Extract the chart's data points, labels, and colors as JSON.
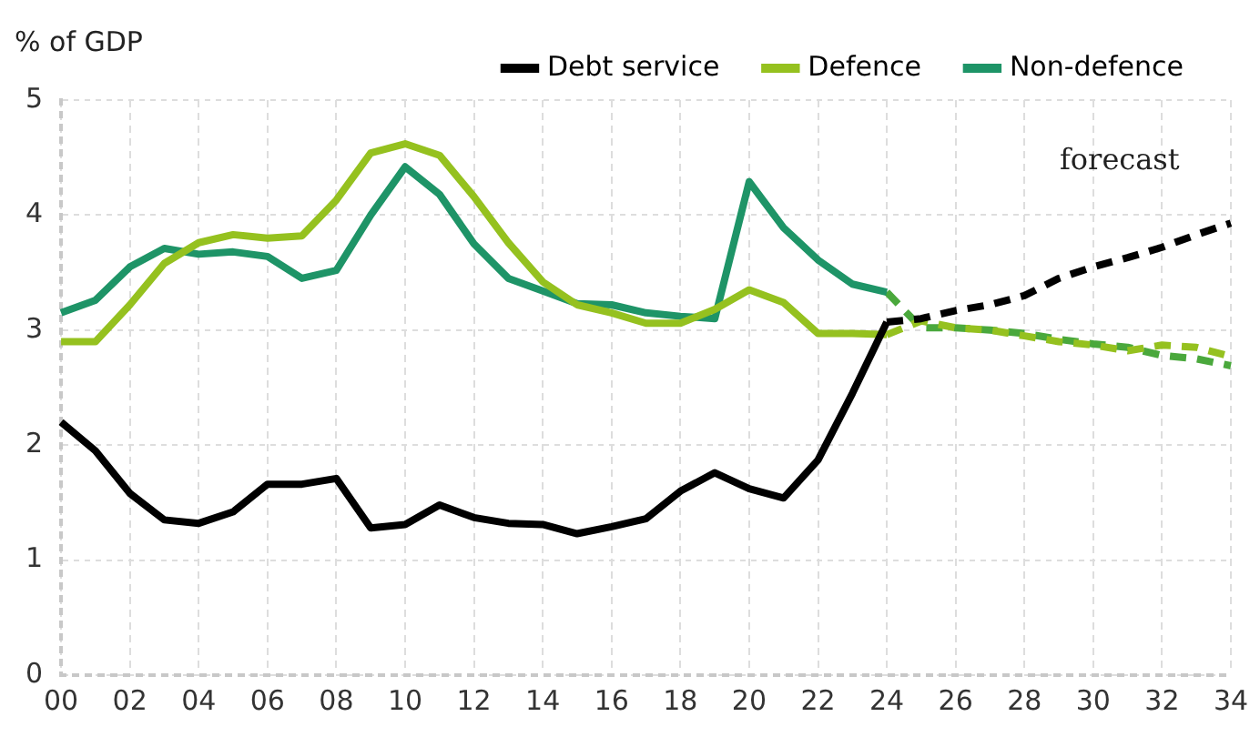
{
  "chart_data": {
    "type": "line",
    "ylabel": "% of GDP",
    "categories": [
      "00",
      null,
      "02",
      null,
      "04",
      null,
      "06",
      null,
      "08",
      null,
      "10",
      null,
      "12",
      null,
      "14",
      null,
      "16",
      null,
      "18",
      null,
      "20",
      null,
      "22",
      null,
      "24",
      null,
      "26",
      null,
      "28",
      null,
      "30",
      null,
      "32",
      null,
      "34"
    ],
    "series": [
      {
        "name": "Debt service",
        "color": "#000000",
        "line_style": "solid",
        "values": [
          2.2,
          1.95,
          1.58,
          1.35,
          1.32,
          1.42,
          1.66,
          1.66,
          1.71,
          1.28,
          1.31,
          1.48,
          1.37,
          1.32,
          1.31,
          1.23,
          1.29,
          1.36,
          1.6,
          1.76,
          1.62,
          1.54,
          1.87,
          2.45,
          3.07,
          null,
          null,
          null,
          null,
          null,
          null,
          null,
          null,
          null,
          null
        ]
      },
      {
        "name": "Defence",
        "color": "#95c11f",
        "line_style": "solid",
        "values": [
          2.9,
          2.9,
          3.22,
          3.58,
          3.76,
          3.83,
          3.8,
          3.82,
          4.13,
          4.54,
          4.62,
          4.52,
          4.16,
          3.76,
          3.42,
          3.22,
          3.15,
          3.06,
          3.06,
          3.18,
          3.35,
          3.24,
          2.97,
          2.97,
          2.96,
          null,
          null,
          null,
          null,
          null,
          null,
          null,
          null,
          null,
          null
        ]
      },
      {
        "name": "Non-defence",
        "color": "#1e9467",
        "line_style": "solid",
        "values": [
          3.15,
          3.26,
          3.55,
          3.71,
          3.66,
          3.68,
          3.64,
          3.45,
          3.52,
          4.0,
          4.42,
          4.18,
          3.75,
          3.45,
          3.34,
          3.23,
          3.22,
          3.15,
          3.12,
          3.1,
          4.29,
          3.89,
          3.61,
          3.4,
          3.33,
          null,
          null,
          null,
          null,
          null,
          null,
          null,
          null,
          null,
          null
        ]
      },
      {
        "color": "#000000",
        "line_style": "dashed",
        "values": [
          null,
          null,
          null,
          null,
          null,
          null,
          null,
          null,
          null,
          null,
          null,
          null,
          null,
          null,
          null,
          null,
          null,
          null,
          null,
          null,
          null,
          null,
          null,
          null,
          3.07,
          3.1,
          3.17,
          3.22,
          3.3,
          3.45,
          3.55,
          3.63,
          3.72,
          3.83,
          3.93
        ]
      },
      {
        "color": "#95c11f",
        "line_style": "dashed",
        "values": [
          null,
          null,
          null,
          null,
          null,
          null,
          null,
          null,
          null,
          null,
          null,
          null,
          null,
          null,
          null,
          null,
          null,
          null,
          null,
          null,
          null,
          null,
          null,
          null,
          2.96,
          3.08,
          3.02,
          3.0,
          2.95,
          2.9,
          2.87,
          2.82,
          2.87,
          2.85,
          2.77
        ]
      },
      {
        "color": "#4aa83c",
        "line_style": "dashed",
        "values": [
          null,
          null,
          null,
          null,
          null,
          null,
          null,
          null,
          null,
          null,
          null,
          null,
          null,
          null,
          null,
          null,
          null,
          null,
          null,
          null,
          null,
          null,
          null,
          null,
          3.33,
          3.02,
          3.02,
          3.0,
          2.97,
          2.92,
          2.88,
          2.85,
          2.78,
          2.75,
          2.69
        ]
      }
    ],
    "ylim": [
      0,
      5
    ],
    "yticks": [
      0,
      1,
      2,
      3,
      4,
      5
    ],
    "grid": true,
    "legend": "top",
    "marker": "none",
    "annotations": [
      "forecast"
    ]
  }
}
